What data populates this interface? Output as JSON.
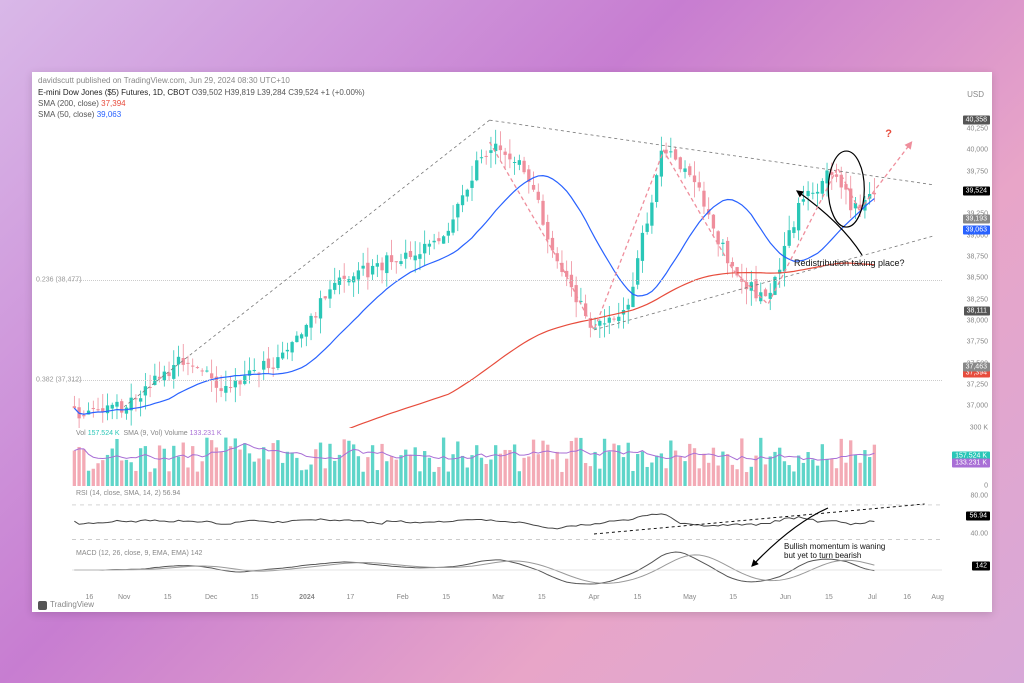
{
  "attribution": "davidscutt published on TradingView.com, Jun 29, 2024 08:30 UTC+10",
  "header": {
    "symbol": "E-mini Dow Jones ($5) Futures, 1D, CBOT",
    "ohlc": "O39,502 H39,819 L39,284 C39,524 +1 (+0.00%)",
    "sma200_label": "SMA (200, close)",
    "sma200_val": "37,394",
    "sma50_label": "SMA (50, close)",
    "sma50_val": "39,063"
  },
  "currency": "USD",
  "price_axis": {
    "min": 36750,
    "max": 40500,
    "ticks": [
      40250,
      40000,
      39750,
      39500,
      39250,
      39000,
      38750,
      38500,
      38250,
      38000,
      37750,
      37500,
      37250,
      37000
    ],
    "tick_labels": [
      "40,250",
      "40,000",
      "39,750",
      "39,500",
      "39,250",
      "39,000",
      "38,750",
      "38,500",
      "38,250",
      "38,000",
      "37,750",
      "37,500",
      "37,250",
      "37,000"
    ]
  },
  "price_tags": [
    {
      "name": "high-tag",
      "value": "40,358",
      "y": 40358,
      "bg": "#555"
    },
    {
      "name": "last-tag",
      "value": "39,524",
      "y": 39524,
      "bg": "#000"
    },
    {
      "name": "sma50-tag",
      "value": "39,063",
      "y": 39063,
      "bg": "#2962ff"
    },
    {
      "name": "sma-alt-tag",
      "value": "39,193",
      "y": 39193,
      "bg": "#888"
    },
    {
      "name": "low-tag",
      "value": "38,111",
      "y": 38111,
      "bg": "#555"
    },
    {
      "name": "sma200-tag",
      "value": "37,394",
      "y": 37394,
      "bg": "#e74c3c"
    },
    {
      "name": "x-tag",
      "value": "37,463",
      "y": 37463,
      "bg": "#888"
    }
  ],
  "fib_levels": [
    {
      "label": "0.236 (38,477)",
      "y": 38477
    },
    {
      "label": "0.382 (37,312)",
      "y": 37312
    }
  ],
  "annotations": {
    "questionmark": "?",
    "redistribution": "Redistribution taking place?",
    "momentum": "Bullish momentum is waning\nbut yet to turn bearish"
  },
  "volume_panel": {
    "label": "Vol",
    "val1": "157.524 K",
    "label2": "SMA (9, Vol) Volume",
    "val2": "133.231 K",
    "axis_ticks": [
      "300 K",
      "157.524 K",
      "133.231 K",
      "0"
    ],
    "axis_tick_y": [
      0,
      28,
      35,
      58
    ],
    "axis_tick_bg": [
      "",
      "#2ac7b7",
      "#a96fd6",
      ""
    ]
  },
  "rsi_panel": {
    "label": "RSI (14, close, SMA, 14, 2)",
    "val": "56.94",
    "high": 70,
    "low": 30,
    "axis_ticks": [
      "80.00",
      "56.94",
      "40.00"
    ],
    "axis_tick_y": [
      8,
      28,
      46
    ],
    "axis_tick_bg": [
      "",
      "#000",
      ""
    ]
  },
  "macd_panel": {
    "label": "MACD (12, 26, close, 9, EMA, EMA)",
    "val": "142",
    "axis_ticks": [
      "142"
    ],
    "axis_tick_y": [
      18
    ],
    "axis_tick_bg": [
      "#000"
    ]
  },
  "x_ticks": [
    {
      "x": 0.02,
      "label": "16"
    },
    {
      "x": 0.06,
      "label": "Nov"
    },
    {
      "x": 0.11,
      "label": "15"
    },
    {
      "x": 0.16,
      "label": "Dec"
    },
    {
      "x": 0.21,
      "label": "15"
    },
    {
      "x": 0.27,
      "label": "2024"
    },
    {
      "x": 0.32,
      "label": "17"
    },
    {
      "x": 0.38,
      "label": "Feb"
    },
    {
      "x": 0.43,
      "label": "15"
    },
    {
      "x": 0.49,
      "label": "Mar"
    },
    {
      "x": 0.54,
      "label": "15"
    },
    {
      "x": 0.6,
      "label": "Apr"
    },
    {
      "x": 0.65,
      "label": "15"
    },
    {
      "x": 0.71,
      "label": "May"
    },
    {
      "x": 0.76,
      "label": "15"
    },
    {
      "x": 0.82,
      "label": "Jun"
    },
    {
      "x": 0.87,
      "label": "15"
    },
    {
      "x": 0.92,
      "label": "Jul"
    },
    {
      "x": 0.96,
      "label": "16"
    },
    {
      "x": 0.995,
      "label": "Aug"
    }
  ],
  "colors": {
    "candle_up": "#2ac7b7",
    "candle_dn": "#ef8e9c",
    "sma50": "#2962ff",
    "sma200": "#e74c3c",
    "vol_sma": "#a96fd6",
    "rsi": "#444",
    "macd": "#555",
    "trend": "#777",
    "proj_up": "#ef8e9c"
  },
  "candles_seed": 0.42,
  "candles_count": 170,
  "price_path_shape": "uptrend-then-triangle",
  "sma50_path": "smooth-follow",
  "sma200_path": "rising-slow",
  "footer": "TradingView"
}
